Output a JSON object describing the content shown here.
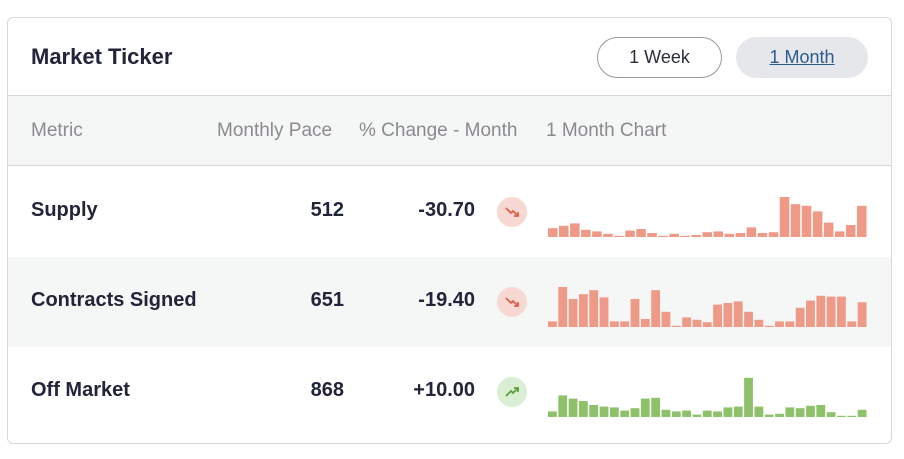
{
  "header": {
    "title": "Market Ticker",
    "ranges": [
      {
        "label": "1 Week",
        "active": false
      },
      {
        "label": "1 Month",
        "active": true
      }
    ]
  },
  "table": {
    "columns": [
      "Metric",
      "Monthly Pace",
      "% Change - Month",
      "1 Month Chart"
    ],
    "rows": [
      {
        "metric": "Supply",
        "pace": "512",
        "change": "-30.70",
        "trend": "down",
        "trend_icon": "trending-down-icon",
        "color": "#ee9a86",
        "chart": [
          0.22,
          0.28,
          0.34,
          0.18,
          0.14,
          0.08,
          0,
          0.16,
          0.2,
          0.1,
          0,
          0.08,
          0,
          0.05,
          0.12,
          0.14,
          0.08,
          0.1,
          0.24,
          0.1,
          0.12,
          1.0,
          0.82,
          0.78,
          0.64,
          0.36,
          0.14,
          0.3,
          0.78
        ]
      },
      {
        "metric": "Contracts Signed",
        "pace": "651",
        "change": "-19.40",
        "trend": "down",
        "trend_icon": "trending-down-icon",
        "color": "#ee9a86",
        "chart": [
          0.14,
          1.0,
          0.7,
          0.82,
          0.92,
          0.74,
          0.14,
          0.14,
          0.7,
          0.2,
          0.92,
          0.38,
          0,
          0.24,
          0.18,
          0.12,
          0.56,
          0.6,
          0.64,
          0.38,
          0.18,
          0,
          0.14,
          0.14,
          0.48,
          0.66,
          0.78,
          0.76,
          0.76,
          0.14,
          0.62
        ]
      },
      {
        "metric": "Off Market",
        "pace": "868",
        "change": "+10.00",
        "trend": "up",
        "trend_icon": "trending-up-icon",
        "color": "#8ec26a",
        "chart": [
          0.14,
          0.54,
          0.46,
          0.4,
          0.3,
          0.26,
          0.24,
          0.16,
          0.22,
          0.46,
          0.48,
          0.18,
          0.14,
          0.16,
          0.06,
          0.16,
          0.14,
          0.24,
          0.26,
          0.98,
          0.26,
          0.06,
          0.08,
          0.24,
          0.22,
          0.28,
          0.3,
          0.12,
          0,
          0.02,
          0.18
        ]
      }
    ]
  }
}
